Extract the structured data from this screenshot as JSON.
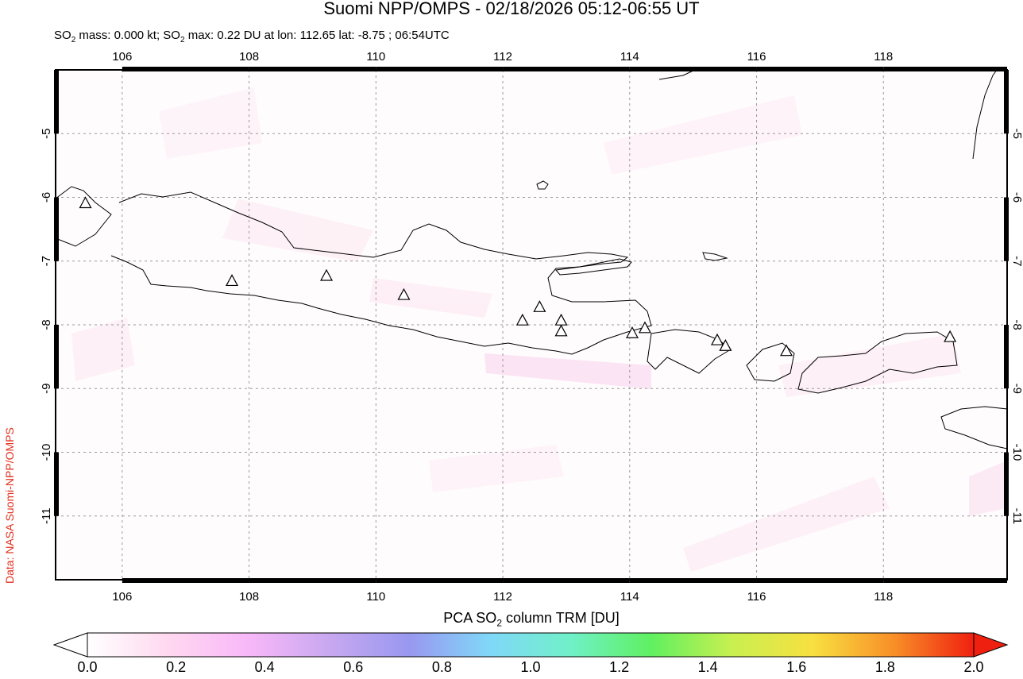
{
  "title": "Suomi NPP/OMPS - 02/18/2026 05:12-06:55 UT",
  "subtitle": {
    "mass_prefix": "SO",
    "mass_sub": "2",
    "mass_text": " mass: 0.000 kt; SO",
    "max_sub": "2",
    "max_text": " max: 0.22 DU at lon: 112.65 lat: -8.75 ; 06:54UTC"
  },
  "credit": "Data: NASA Suomi-NPP/OMPS",
  "map": {
    "lon_ticks": [
      "106",
      "108",
      "110",
      "112",
      "114",
      "116",
      "118"
    ],
    "lat_ticks": [
      "-5",
      "-6",
      "-7",
      "-8",
      "-9",
      "-10",
      "-11"
    ],
    "volcanoes": [
      {
        "lon": 105.42,
        "lat": -6.1
      },
      {
        "lon": 107.73,
        "lat": -7.32
      },
      {
        "lon": 109.22,
        "lat": -7.24
      },
      {
        "lon": 110.44,
        "lat": -7.54
      },
      {
        "lon": 112.31,
        "lat": -7.94
      },
      {
        "lon": 112.58,
        "lat": -7.73
      },
      {
        "lon": 112.92,
        "lat": -7.94
      },
      {
        "lon": 112.92,
        "lat": -8.11
      },
      {
        "lon": 114.04,
        "lat": -8.14
      },
      {
        "lon": 114.24,
        "lat": -8.06
      },
      {
        "lon": 115.38,
        "lat": -8.25
      },
      {
        "lon": 115.51,
        "lat": -8.34
      },
      {
        "lon": 116.47,
        "lat": -8.42
      },
      {
        "lon": 119.05,
        "lat": -8.2
      }
    ]
  },
  "colorbar": {
    "title_prefix": "PCA SO",
    "title_sub": "2",
    "title_suffix": " column TRM [DU]",
    "ticks": [
      "0.0",
      "0.2",
      "0.4",
      "0.6",
      "0.8",
      "1.0",
      "1.2",
      "1.4",
      "1.6",
      "1.8",
      "2.0"
    ],
    "colors": [
      "#ffffff",
      "#ffd8f0",
      "#f8b8f8",
      "#c8a8f0",
      "#9898f0",
      "#80d8f8",
      "#70f0c8",
      "#60f060",
      "#c8f050",
      "#f8e040",
      "#f89028",
      "#f02010"
    ]
  }
}
